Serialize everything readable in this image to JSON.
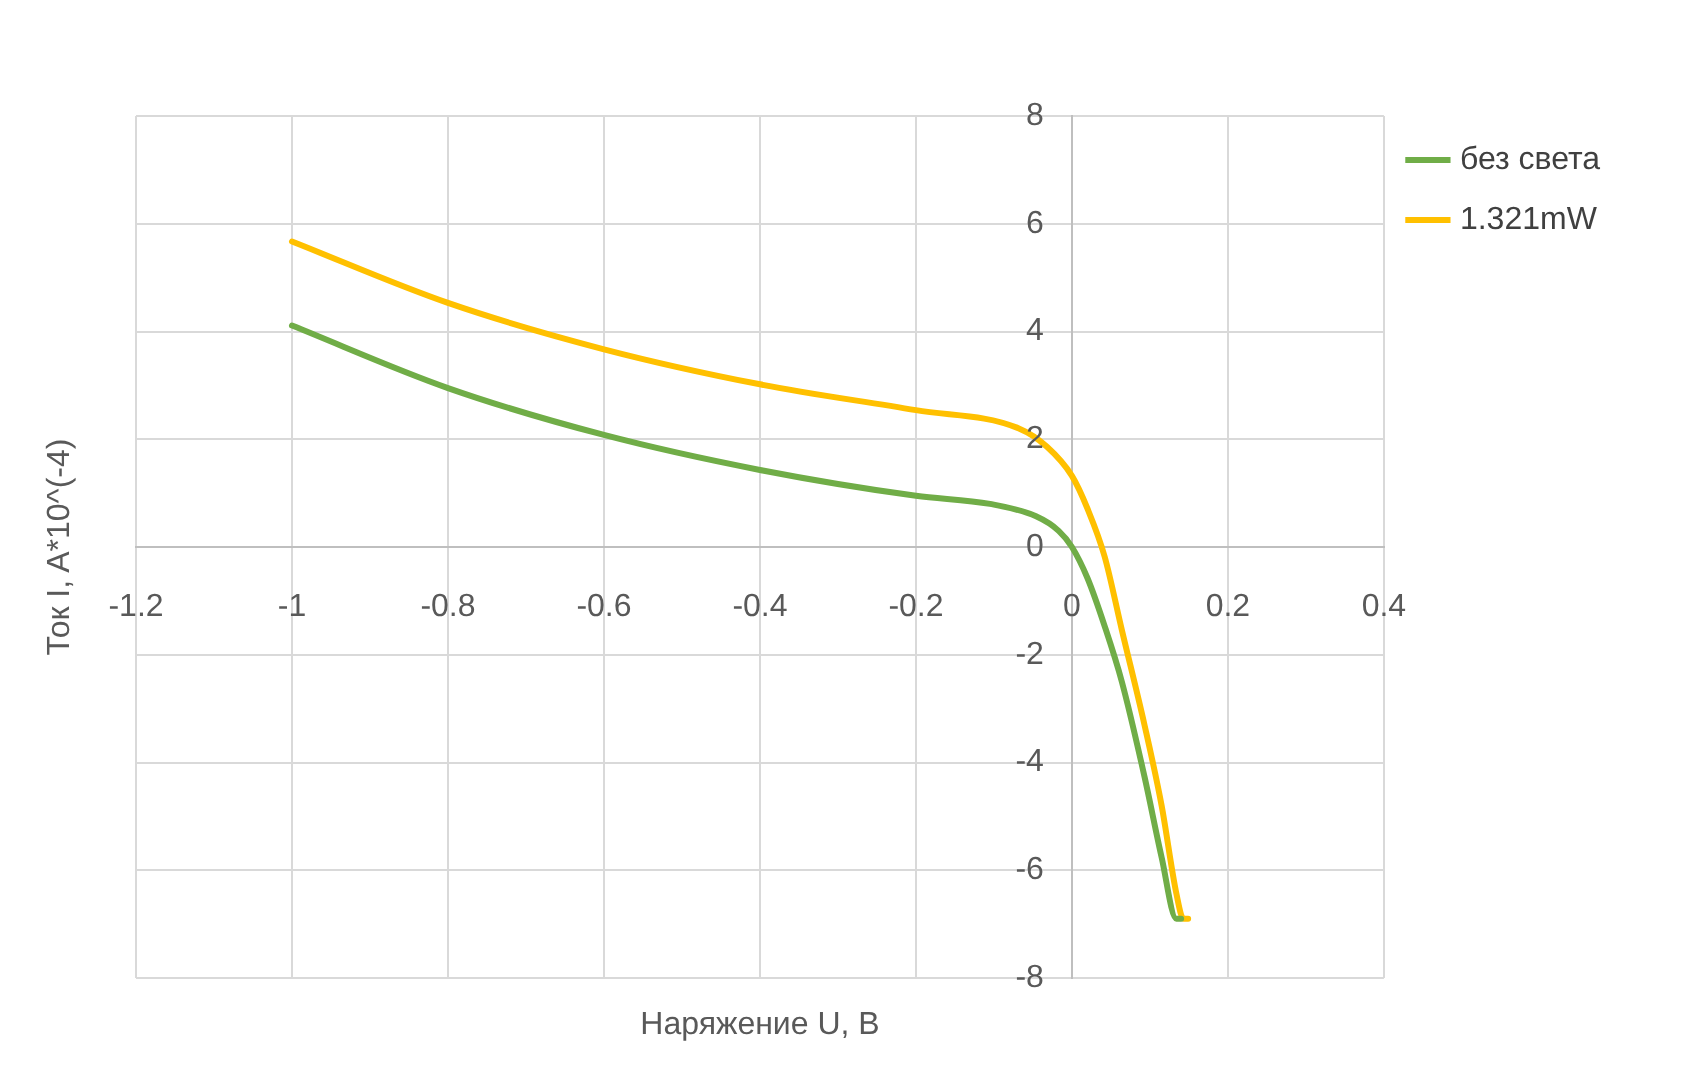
{
  "chart_data": {
    "type": "line",
    "xlabel": "Наряжение U, В",
    "ylabel": "Ток I, A*10^(-4)",
    "xlim": [
      -1.2,
      0.4
    ],
    "xticks": [
      -1.2,
      -1,
      -0.8,
      -0.6,
      -0.4,
      -0.2,
      0,
      0.2,
      0.4
    ],
    "ylim": [
      -8,
      8
    ],
    "yticks": [
      -8,
      -6,
      -4,
      -2,
      0,
      2,
      4,
      6,
      8
    ],
    "grid": true,
    "legend": "right",
    "marker": "none",
    "line_style": "solid",
    "series": [
      {
        "name": "без света",
        "color": "#70ad47",
        "x": [
          -1,
          -0.8,
          -0.6,
          -0.4,
          -0.2,
          -0.105,
          -0.046,
          -0.017,
          0,
          0.02,
          0.042,
          0.064,
          0.093,
          0.115,
          0.134,
          0.14
        ],
        "values": [
          4.11,
          2.95,
          2.08,
          1.43,
          0.95,
          0.8,
          0.57,
          0.3,
          0,
          -0.58,
          -1.47,
          -2.5,
          -4.26,
          -5.76,
          -6.9,
          -6.9
        ]
      },
      {
        "name": "1.321mW",
        "color": "#ffc000",
        "x": [
          -1,
          -0.8,
          -0.6,
          -0.4,
          -0.2,
          -0.068,
          -0.032,
          0,
          0.02,
          0.042,
          0.064,
          0.093,
          0.115,
          0.134,
          0.143,
          0.149
        ],
        "values": [
          5.67,
          4.53,
          3.67,
          3.02,
          2.54,
          2.2,
          1.86,
          1.32,
          0.71,
          -0.18,
          -1.54,
          -3.3,
          -4.8,
          -6.44,
          -6.9,
          -6.9
        ]
      }
    ]
  }
}
